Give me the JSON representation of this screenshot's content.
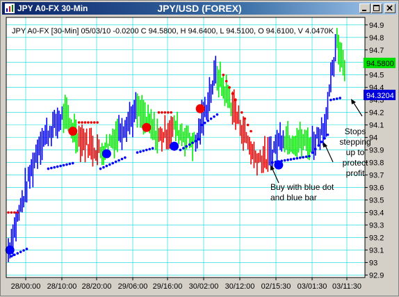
{
  "window": {
    "title_left": "JPY A0-FX 30-Min",
    "title_center": "JPY/USD (FOREX)",
    "buttons": [
      "minimize",
      "maximize",
      "close"
    ]
  },
  "chart_data": {
    "type": "bar",
    "info_line": "JPY A0-FX [30-Min] 05/03/10  -0.0200 C 94.5800, H 94.6400, L 94.5100, O 94.6100, V 4.0470K",
    "x_tick_labels": [
      "28/00:00",
      "28/10:00",
      "28/20:00",
      "29/06:00",
      "29/16:00",
      "30/02:00",
      "30/12:00",
      "02/15:30",
      "03/01:30",
      "03/11:30"
    ],
    "y_ticks": [
      92.9,
      93,
      93.1,
      93.2,
      93.3,
      93.4,
      93.5,
      93.6,
      93.7,
      93.8,
      93.9,
      94,
      94.1,
      94.2,
      94.3,
      94.4,
      94.5,
      94.6,
      94.7,
      94.8,
      94.9
    ],
    "ylim": [
      92.88,
      94.96
    ],
    "last_price_label": "94.5800",
    "stop_label": "94.3204",
    "annotations": [
      "Stops stepping up to protect profit",
      "Buy with blue dot and blue bar"
    ],
    "segments": [
      {
        "start": 0,
        "end": 20,
        "color": "blue",
        "from": 93.1,
        "to": 93.95
      },
      {
        "start": 20,
        "end": 36,
        "color": "blue",
        "from": 93.95,
        "to": 94.18
      },
      {
        "start": 36,
        "end": 46,
        "color": "green",
        "from": 94.18,
        "to": 94.0
      },
      {
        "start": 46,
        "end": 60,
        "color": "red",
        "from": 94.0,
        "to": 93.88
      },
      {
        "start": 60,
        "end": 72,
        "color": "green",
        "from": 93.88,
        "to": 94.05
      },
      {
        "start": 72,
        "end": 84,
        "color": "blue",
        "from": 94.05,
        "to": 94.22
      },
      {
        "start": 84,
        "end": 98,
        "color": "green",
        "from": 94.22,
        "to": 94.0
      },
      {
        "start": 98,
        "end": 108,
        "color": "red",
        "from": 94.0,
        "to": 94.08
      },
      {
        "start": 108,
        "end": 122,
        "color": "green",
        "from": 94.08,
        "to": 93.95
      },
      {
        "start": 122,
        "end": 136,
        "color": "blue",
        "from": 93.95,
        "to": 94.55
      },
      {
        "start": 136,
        "end": 146,
        "color": "green",
        "from": 94.5,
        "to": 94.25
      },
      {
        "start": 146,
        "end": 160,
        "color": "red",
        "from": 94.25,
        "to": 93.85
      },
      {
        "start": 160,
        "end": 170,
        "color": "red",
        "from": 93.85,
        "to": 93.82
      },
      {
        "start": 170,
        "end": 180,
        "color": "blue",
        "from": 93.85,
        "to": 94.05
      },
      {
        "start": 180,
        "end": 198,
        "color": "green",
        "from": 94.0,
        "to": 93.95
      },
      {
        "start": 198,
        "end": 206,
        "color": "blue",
        "from": 93.95,
        "to": 94.1
      },
      {
        "start": 206,
        "end": 214,
        "color": "blue",
        "from": 94.1,
        "to": 94.75
      },
      {
        "start": 214,
        "end": 220,
        "color": "green",
        "from": 94.75,
        "to": 94.55
      }
    ],
    "stop_dots": [
      {
        "start": 0,
        "end": 8,
        "color": "red",
        "from": 93.4,
        "to": 93.4
      },
      {
        "start": 2,
        "end": 14,
        "color": "blue",
        "from": 93.05,
        "to": 93.12
      },
      {
        "start": 26,
        "end": 44,
        "color": "blue",
        "from": 93.75,
        "to": 93.8
      },
      {
        "start": 46,
        "end": 60,
        "color": "red",
        "from": 94.12,
        "to": 94.12
      },
      {
        "start": 60,
        "end": 78,
        "color": "blue",
        "from": 93.75,
        "to": 93.85
      },
      {
        "start": 84,
        "end": 96,
        "color": "blue",
        "from": 93.88,
        "to": 93.92
      },
      {
        "start": 98,
        "end": 108,
        "color": "red",
        "from": 94.2,
        "to": 94.2
      },
      {
        "start": 112,
        "end": 126,
        "color": "blue",
        "from": 93.9,
        "to": 94.0
      },
      {
        "start": 126,
        "end": 138,
        "color": "blue",
        "from": 94.1,
        "to": 94.2
      },
      {
        "start": 140,
        "end": 150,
        "color": "red",
        "from": 94.5,
        "to": 94.25
      },
      {
        "start": 152,
        "end": 160,
        "color": "red",
        "from": 94.2,
        "to": 94.0
      },
      {
        "start": 172,
        "end": 196,
        "color": "blue",
        "from": 93.8,
        "to": 93.85
      },
      {
        "start": 196,
        "end": 210,
        "color": "blue",
        "from": 93.85,
        "to": 94.05
      },
      {
        "start": 210,
        "end": 218,
        "color": "blue",
        "from": 94.3,
        "to": 94.32
      }
    ],
    "signal_dots": [
      {
        "bar": 1,
        "price": 93.1,
        "color": "blue"
      },
      {
        "bar": 42,
        "price": 94.05,
        "color": "red"
      },
      {
        "bar": 64,
        "price": 93.87,
        "color": "blue"
      },
      {
        "bar": 90,
        "price": 94.08,
        "color": "red"
      },
      {
        "bar": 108,
        "price": 93.93,
        "color": "blue"
      },
      {
        "bar": 125,
        "price": 94.23,
        "color": "red"
      },
      {
        "bar": 176,
        "price": 93.78,
        "color": "blue"
      }
    ],
    "colors": {
      "blue": "#0000ff",
      "green": "#00ee00",
      "red": "#ee0000",
      "grid": "#00d8d8",
      "pricebox": "#00e000",
      "stopbox": "#0000dd"
    }
  }
}
